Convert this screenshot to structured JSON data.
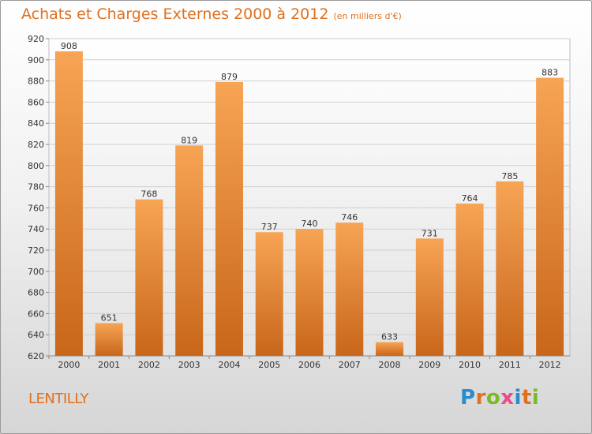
{
  "header": {
    "title": "Achats et Charges Externes 2000 à 2012",
    "unit": "(en milliers d'€)"
  },
  "footer": {
    "commune": "LENTILLY",
    "logo": "Proxiti"
  },
  "colors": {
    "accent": "#e0701e",
    "bar_top": "#f7a455",
    "bar_bottom": "#c8661a"
  },
  "chart_data": {
    "type": "bar",
    "title": "Achats et Charges Externes 2000 à 2012",
    "subtitle": "(en milliers d'€)",
    "categories": [
      "2000",
      "2001",
      "2002",
      "2003",
      "2004",
      "2005",
      "2006",
      "2007",
      "2008",
      "2009",
      "2010",
      "2011",
      "2012"
    ],
    "values": [
      908,
      651,
      768,
      819,
      879,
      737,
      740,
      746,
      633,
      731,
      764,
      785,
      883
    ],
    "ylim": [
      620,
      920
    ],
    "yticks": [
      620,
      640,
      660,
      680,
      700,
      720,
      740,
      760,
      780,
      800,
      820,
      840,
      860,
      880,
      900,
      920
    ],
    "grid": true
  }
}
